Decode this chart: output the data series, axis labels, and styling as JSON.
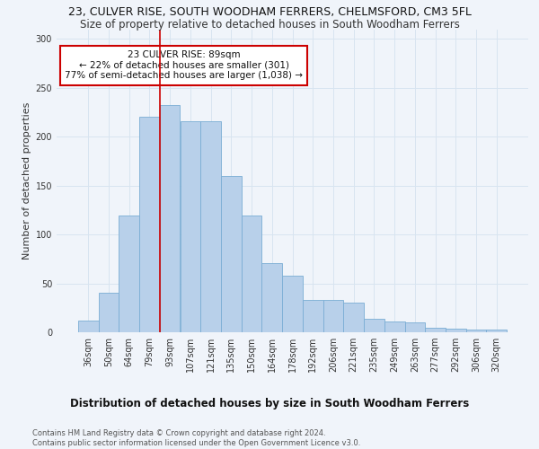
{
  "title": "23, CULVER RISE, SOUTH WOODHAM FERRERS, CHELMSFORD, CM3 5FL",
  "subtitle": "Size of property relative to detached houses in South Woodham Ferrers",
  "xlabel": "Distribution of detached houses by size in South Woodham Ferrers",
  "ylabel": "Number of detached properties",
  "categories": [
    "36sqm",
    "50sqm",
    "64sqm",
    "79sqm",
    "93sqm",
    "107sqm",
    "121sqm",
    "135sqm",
    "150sqm",
    "164sqm",
    "178sqm",
    "192sqm",
    "206sqm",
    "221sqm",
    "235sqm",
    "249sqm",
    "263sqm",
    "277sqm",
    "292sqm",
    "306sqm",
    "320sqm"
  ],
  "values": [
    12,
    40,
    119,
    220,
    232,
    216,
    216,
    160,
    119,
    71,
    58,
    33,
    33,
    30,
    14,
    11,
    10,
    5,
    4,
    3,
    3
  ],
  "bar_color": "#b8d0ea",
  "bar_edge_color": "#7aadd4",
  "grid_color": "#d8e4f0",
  "background_color": "#f0f4fa",
  "vline_color": "#cc0000",
  "vline_x_index": 4,
  "annotation_text": "23 CULVER RISE: 89sqm\n← 22% of detached houses are smaller (301)\n77% of semi-detached houses are larger (1,038) →",
  "annotation_box_color": "#ffffff",
  "annotation_box_edge": "#cc0000",
  "footer": "Contains HM Land Registry data © Crown copyright and database right 2024.\nContains public sector information licensed under the Open Government Licence v3.0.",
  "ylim": [
    0,
    310
  ],
  "title_fontsize": 9,
  "subtitle_fontsize": 8.5,
  "xlabel_fontsize": 8.5,
  "ylabel_fontsize": 8,
  "tick_fontsize": 7,
  "footer_fontsize": 6,
  "ann_fontsize": 7.5
}
